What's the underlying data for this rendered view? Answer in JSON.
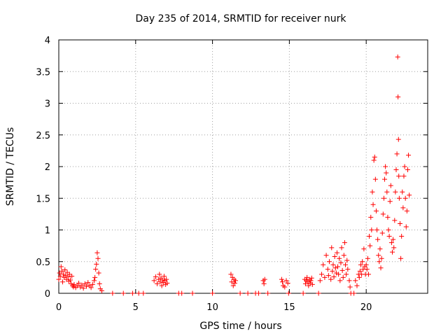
{
  "chart_data": {
    "type": "scatter",
    "title": "Day 235 of 2014, SRMTID for receiver nurk",
    "xlabel": "GPS time / hours",
    "ylabel": "SRMTID / TECUs",
    "xlim": [
      0,
      24
    ],
    "ylim": [
      0,
      4
    ],
    "xticks": [
      0,
      5,
      10,
      15,
      20
    ],
    "yticks": [
      0,
      0.5,
      1,
      1.5,
      2,
      2.5,
      3,
      3.5,
      4
    ],
    "xtick_labels": [
      "0",
      "5",
      "10",
      "15",
      "20"
    ],
    "ytick_labels": [
      "0",
      "0.5",
      "1",
      "1.5",
      "2",
      "2.5",
      "3",
      "3.5",
      "4"
    ],
    "grid": true,
    "marker": "+",
    "series": [
      {
        "name": "SRMTID",
        "color": "#ff0000",
        "points": [
          [
            0.0,
            0.22
          ],
          [
            0.05,
            0.32
          ],
          [
            0.1,
            0.27
          ],
          [
            0.15,
            0.42
          ],
          [
            0.2,
            0.35
          ],
          [
            0.25,
            0.18
          ],
          [
            0.3,
            0.3
          ],
          [
            0.35,
            0.25
          ],
          [
            0.4,
            0.37
          ],
          [
            0.45,
            0.28
          ],
          [
            0.5,
            0.22
          ],
          [
            0.55,
            0.33
          ],
          [
            0.6,
            0.26
          ],
          [
            0.65,
            0.19
          ],
          [
            0.7,
            0.3
          ],
          [
            0.75,
            0.21
          ],
          [
            0.8,
            0.15
          ],
          [
            0.85,
            0.27
          ],
          [
            0.9,
            0.12
          ],
          [
            0.95,
            0.1
          ],
          [
            1.0,
            0.14
          ],
          [
            1.1,
            0.09
          ],
          [
            1.2,
            0.12
          ],
          [
            1.3,
            0.16
          ],
          [
            1.4,
            0.1
          ],
          [
            1.5,
            0.13
          ],
          [
            1.6,
            0.08
          ],
          [
            1.7,
            0.15
          ],
          [
            1.8,
            0.11
          ],
          [
            1.9,
            0.17
          ],
          [
            2.0,
            0.12
          ],
          [
            2.1,
            0.09
          ],
          [
            2.2,
            0.14
          ],
          [
            2.3,
            0.2
          ],
          [
            2.35,
            0.25
          ],
          [
            2.4,
            0.38
          ],
          [
            2.45,
            0.46
          ],
          [
            2.5,
            0.64
          ],
          [
            2.55,
            0.55
          ],
          [
            2.6,
            0.32
          ],
          [
            2.65,
            0.15
          ],
          [
            2.7,
            0.07
          ],
          [
            2.8,
            0.04
          ],
          [
            3.5,
            0.0
          ],
          [
            4.2,
            0.0
          ],
          [
            4.8,
            0.0
          ],
          [
            5.2,
            0.0
          ],
          [
            5.5,
            0.0
          ],
          [
            6.2,
            0.2
          ],
          [
            6.3,
            0.26
          ],
          [
            6.4,
            0.15
          ],
          [
            6.5,
            0.22
          ],
          [
            6.55,
            0.3
          ],
          [
            6.6,
            0.18
          ],
          [
            6.65,
            0.24
          ],
          [
            6.7,
            0.12
          ],
          [
            6.75,
            0.21
          ],
          [
            6.8,
            0.17
          ],
          [
            6.85,
            0.27
          ],
          [
            6.9,
            0.2
          ],
          [
            6.95,
            0.14
          ],
          [
            7.0,
            0.22
          ],
          [
            7.05,
            0.16
          ],
          [
            7.8,
            0.0
          ],
          [
            8.0,
            0.0
          ],
          [
            8.7,
            0.0
          ],
          [
            10.0,
            0.0
          ],
          [
            11.2,
            0.3
          ],
          [
            11.25,
            0.18
          ],
          [
            11.3,
            0.25
          ],
          [
            11.35,
            0.12
          ],
          [
            11.4,
            0.22
          ],
          [
            11.45,
            0.16
          ],
          [
            11.5,
            0.2
          ],
          [
            11.8,
            0.0
          ],
          [
            12.3,
            0.0
          ],
          [
            12.8,
            0.0
          ],
          [
            13.0,
            0.0
          ],
          [
            13.3,
            0.2
          ],
          [
            13.35,
            0.15
          ],
          [
            13.4,
            0.22
          ],
          [
            13.6,
            0.0
          ],
          [
            14.5,
            0.22
          ],
          [
            14.55,
            0.18
          ],
          [
            14.6,
            0.12
          ],
          [
            14.7,
            0.1
          ],
          [
            14.8,
            0.2
          ],
          [
            14.9,
            0.16
          ],
          [
            14.95,
            0.0
          ],
          [
            15.9,
            0.0
          ],
          [
            16.0,
            0.22
          ],
          [
            16.05,
            0.15
          ],
          [
            16.1,
            0.2
          ],
          [
            16.15,
            0.25
          ],
          [
            16.2,
            0.18
          ],
          [
            16.25,
            0.12
          ],
          [
            16.3,
            0.22
          ],
          [
            16.35,
            0.16
          ],
          [
            16.4,
            0.2
          ],
          [
            16.45,
            0.24
          ],
          [
            16.5,
            0.14
          ],
          [
            16.9,
            0.0
          ],
          [
            17.0,
            0.2
          ],
          [
            17.1,
            0.3
          ],
          [
            17.2,
            0.45
          ],
          [
            17.3,
            0.25
          ],
          [
            17.4,
            0.6
          ],
          [
            17.5,
            0.38
          ],
          [
            17.55,
            0.28
          ],
          [
            17.6,
            0.5
          ],
          [
            17.7,
            0.22
          ],
          [
            17.75,
            0.72
          ],
          [
            17.8,
            0.35
          ],
          [
            17.85,
            0.45
          ],
          [
            17.9,
            0.26
          ],
          [
            17.95,
            0.58
          ],
          [
            18.0,
            0.4
          ],
          [
            18.05,
            0.32
          ],
          [
            18.1,
            0.64
          ],
          [
            18.15,
            0.42
          ],
          [
            18.2,
            0.3
          ],
          [
            18.25,
            0.55
          ],
          [
            18.3,
            0.2
          ],
          [
            18.35,
            0.48
          ],
          [
            18.4,
            0.72
          ],
          [
            18.45,
            0.36
          ],
          [
            18.5,
            0.25
          ],
          [
            18.55,
            0.6
          ],
          [
            18.6,
            0.8
          ],
          [
            18.65,
            0.45
          ],
          [
            18.7,
            0.3
          ],
          [
            18.75,
            0.52
          ],
          [
            18.8,
            0.38
          ],
          [
            18.9,
            0.2
          ],
          [
            18.95,
            0.1
          ],
          [
            19.0,
            0.0
          ],
          [
            19.2,
            0.0
          ],
          [
            19.3,
            0.2
          ],
          [
            19.4,
            0.12
          ],
          [
            19.5,
            0.3
          ],
          [
            19.55,
            0.25
          ],
          [
            19.6,
            0.35
          ],
          [
            19.65,
            0.45
          ],
          [
            19.7,
            0.3
          ],
          [
            19.75,
            0.5
          ],
          [
            19.8,
            0.38
          ],
          [
            19.85,
            0.7
          ],
          [
            19.9,
            0.42
          ],
          [
            19.95,
            0.3
          ],
          [
            20.0,
            0.45
          ],
          [
            20.05,
            0.38
          ],
          [
            20.1,
            0.55
          ],
          [
            20.15,
            0.3
          ],
          [
            20.2,
            0.9
          ],
          [
            20.25,
            0.75
          ],
          [
            20.3,
            1.2
          ],
          [
            20.35,
            1.0
          ],
          [
            20.4,
            1.6
          ],
          [
            20.45,
            1.4
          ],
          [
            20.5,
            2.1
          ],
          [
            20.55,
            2.15
          ],
          [
            20.6,
            1.8
          ],
          [
            20.65,
            1.3
          ],
          [
            20.7,
            1.0
          ],
          [
            20.75,
            0.85
          ],
          [
            20.8,
            0.6
          ],
          [
            20.85,
            0.5
          ],
          [
            20.9,
            0.7
          ],
          [
            20.95,
            0.4
          ],
          [
            21.0,
            0.55
          ],
          [
            21.05,
            0.95
          ],
          [
            21.1,
            1.25
          ],
          [
            21.15,
            1.5
          ],
          [
            21.2,
            1.8
          ],
          [
            21.25,
            2.0
          ],
          [
            21.3,
            1.9
          ],
          [
            21.35,
            1.6
          ],
          [
            21.4,
            1.2
          ],
          [
            21.45,
            1.0
          ],
          [
            21.5,
            0.9
          ],
          [
            21.55,
            1.45
          ],
          [
            21.6,
            1.7
          ],
          [
            21.65,
            0.8
          ],
          [
            21.7,
            0.65
          ],
          [
            21.75,
            0.85
          ],
          [
            21.8,
            0.72
          ],
          [
            21.85,
            1.15
          ],
          [
            21.9,
            1.6
          ],
          [
            21.95,
            1.95
          ],
          [
            22.0,
            2.2
          ],
          [
            22.05,
            3.73
          ],
          [
            22.07,
            3.1
          ],
          [
            22.1,
            2.43
          ],
          [
            22.12,
            1.85
          ],
          [
            22.15,
            1.5
          ],
          [
            22.2,
            1.1
          ],
          [
            22.25,
            0.55
          ],
          [
            22.3,
            0.9
          ],
          [
            22.35,
            1.6
          ],
          [
            22.4,
            1.35
          ],
          [
            22.45,
            1.85
          ],
          [
            22.5,
            2.0
          ],
          [
            22.55,
            1.5
          ],
          [
            22.6,
            1.05
          ],
          [
            22.65,
            1.3
          ],
          [
            22.7,
            1.95
          ],
          [
            22.75,
            2.18
          ],
          [
            22.8,
            1.55
          ]
        ]
      }
    ]
  }
}
